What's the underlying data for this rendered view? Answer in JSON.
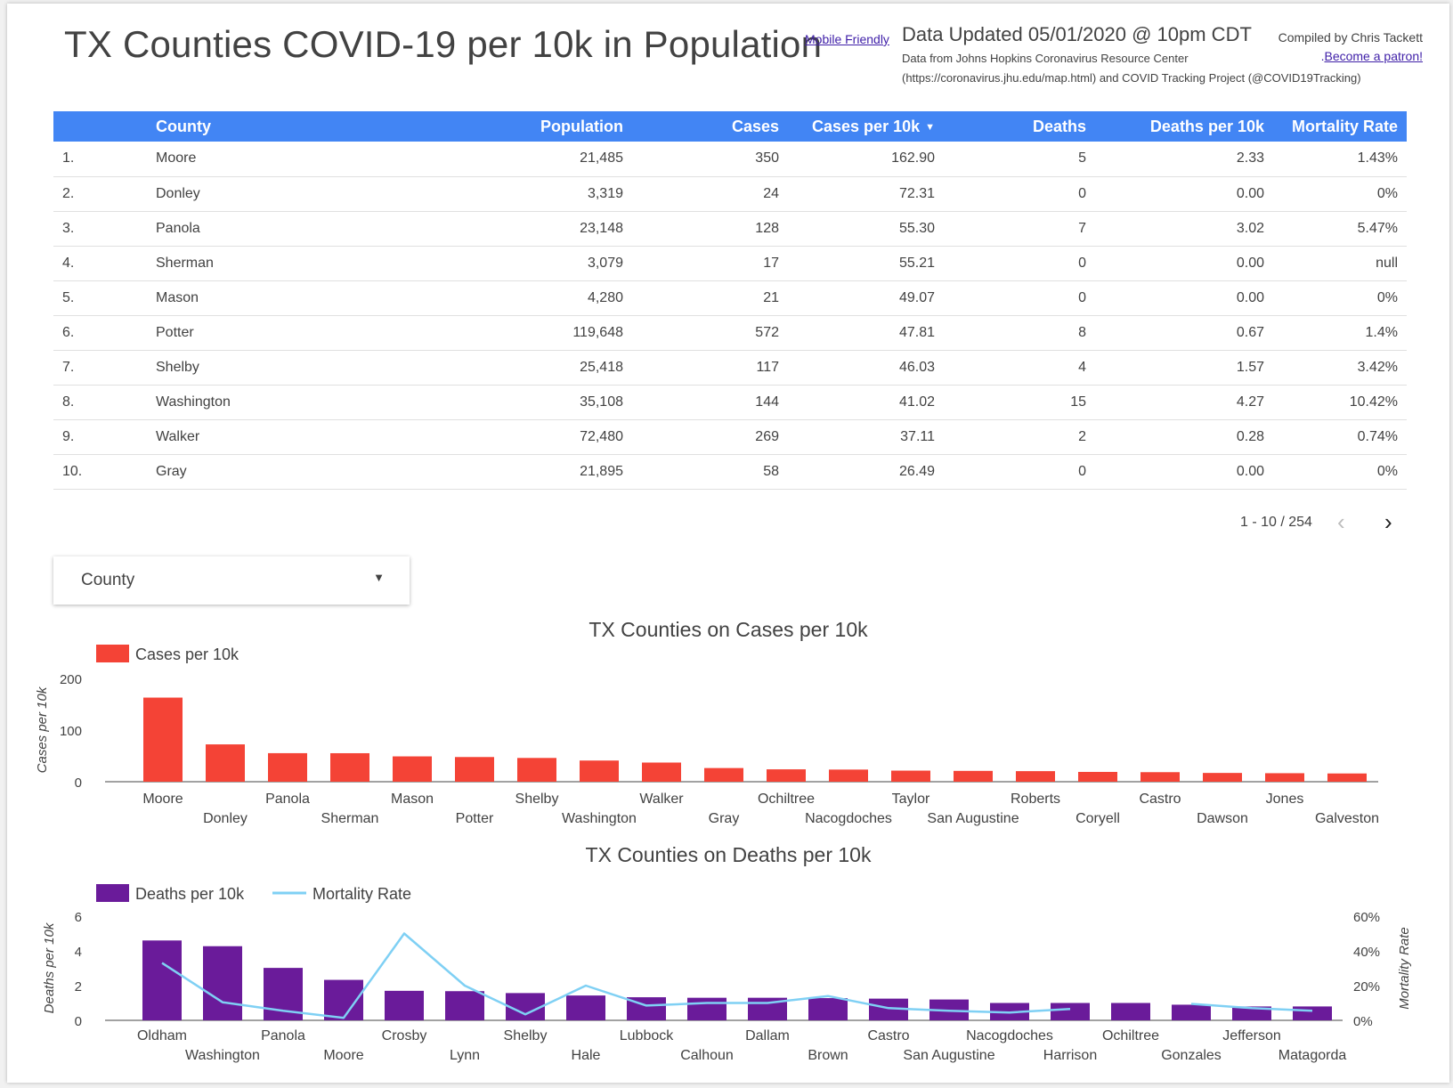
{
  "header": {
    "title": "TX Counties COVID-19 per 10k in Population",
    "mobile_link": "Mobile Friendly",
    "updated": "Data Updated 05/01/2020 @ 10pm CDT",
    "source_line1": "Data from Johns Hopkins Coronavirus Resource Center",
    "source_line2": "(https://coronavirus.jhu.edu/map.html) and COVID Tracking Project (@COVID19Tracking)",
    "compiled": "Compiled by Chris Tackett",
    "patron_prefix": ".",
    "patron_link": "Become a patron!"
  },
  "table": {
    "columns": [
      "",
      "County",
      "Population",
      "Cases",
      "Cases per 10k",
      "Deaths",
      "Deaths per 10k",
      "Mortality Rate"
    ],
    "sort_column": "Cases per 10k",
    "rows": [
      [
        "1.",
        "Moore",
        "21,485",
        "350",
        "162.90",
        "5",
        "2.33",
        "1.43%"
      ],
      [
        "2.",
        "Donley",
        "3,319",
        "24",
        "72.31",
        "0",
        "0.00",
        "0%"
      ],
      [
        "3.",
        "Panola",
        "23,148",
        "128",
        "55.30",
        "7",
        "3.02",
        "5.47%"
      ],
      [
        "4.",
        "Sherman",
        "3,079",
        "17",
        "55.21",
        "0",
        "0.00",
        "null"
      ],
      [
        "5.",
        "Mason",
        "4,280",
        "21",
        "49.07",
        "0",
        "0.00",
        "0%"
      ],
      [
        "6.",
        "Potter",
        "119,648",
        "572",
        "47.81",
        "8",
        "0.67",
        "1.4%"
      ],
      [
        "7.",
        "Shelby",
        "25,418",
        "117",
        "46.03",
        "4",
        "1.57",
        "3.42%"
      ],
      [
        "8.",
        "Washington",
        "35,108",
        "144",
        "41.02",
        "15",
        "4.27",
        "10.42%"
      ],
      [
        "9.",
        "Walker",
        "72,480",
        "269",
        "37.11",
        "2",
        "0.28",
        "0.74%"
      ],
      [
        "10.",
        "Gray",
        "21,895",
        "58",
        "26.49",
        "0",
        "0.00",
        "0%"
      ]
    ],
    "pagination": "1 - 10 / 254"
  },
  "filter": {
    "label": "County"
  },
  "colors": {
    "header_blue": "#4285f4",
    "cases_bar": "#f44336",
    "deaths_bar": "#6a1b9a",
    "mortality_line": "#7fd0f4"
  },
  "chart_data": [
    {
      "type": "bar",
      "title": "TX Counties on Cases per 10k",
      "legend": [
        "Cases per 10k"
      ],
      "legend_position": "top-left",
      "xlabel": "",
      "ylabel": "Cases per 10k",
      "ylim": [
        0,
        200
      ],
      "yticks": [
        "0",
        "100",
        "200"
      ],
      "categories": [
        "Moore",
        "Donley",
        "Panola",
        "Sherman",
        "Mason",
        "Potter",
        "Shelby",
        "Washington",
        "Walker",
        "Gray",
        "Ochiltree",
        "Nacogdoches",
        "Taylor",
        "San Augustine",
        "Roberts",
        "Coryell",
        "Castro",
        "Dawson",
        "Jones",
        "Galveston"
      ],
      "series": [
        {
          "name": "Cases per 10k",
          "values": [
            162.9,
            72.31,
            55.3,
            55.21,
            49.07,
            47.81,
            46.03,
            41.02,
            37.11,
            26.49,
            24,
            23.5,
            21.5,
            21,
            20.5,
            19,
            18.5,
            17,
            16.5,
            16
          ]
        }
      ]
    },
    {
      "type": "bar",
      "title": "TX Counties on Deaths per 10k",
      "legend": [
        "Deaths per 10k",
        "Mortality Rate"
      ],
      "legend_position": "top-left",
      "xlabel": "",
      "ylabel": "Deaths per 10k",
      "y2label": "Mortality Rate",
      "ylim": [
        0,
        6
      ],
      "y2lim": [
        0,
        60
      ],
      "yticks": [
        "0",
        "2",
        "4",
        "6"
      ],
      "y2ticks": [
        "0%",
        "20%",
        "40%",
        "60%"
      ],
      "categories": [
        "Oldham",
        "Washington",
        "Panola",
        "Moore",
        "Crosby",
        "Lynn",
        "Shelby",
        "Hale",
        "Lubbock",
        "Calhoun",
        "Dallam",
        "Brown",
        "Castro",
        "San Augustine",
        "Nacogdoches",
        "Harrison",
        "Ochiltree",
        "Gonzales",
        "Jefferson",
        "Matagorda"
      ],
      "series": [
        {
          "name": "Deaths per 10k",
          "kind": "bar",
          "values": [
            4.6,
            4.27,
            3.02,
            2.33,
            1.7,
            1.68,
            1.57,
            1.43,
            1.33,
            1.3,
            1.3,
            1.28,
            1.25,
            1.2,
            1.0,
            1.0,
            1.0,
            0.9,
            0.8,
            0.8
          ]
        },
        {
          "name": "Mortality Rate",
          "kind": "line",
          "values": [
            33,
            10.42,
            5.47,
            1.43,
            50,
            20,
            3.42,
            20,
            8.5,
            10,
            10,
            14,
            7,
            5.5,
            4.5,
            6.5,
            null,
            9.5,
            7,
            5.5
          ]
        }
      ]
    }
  ]
}
